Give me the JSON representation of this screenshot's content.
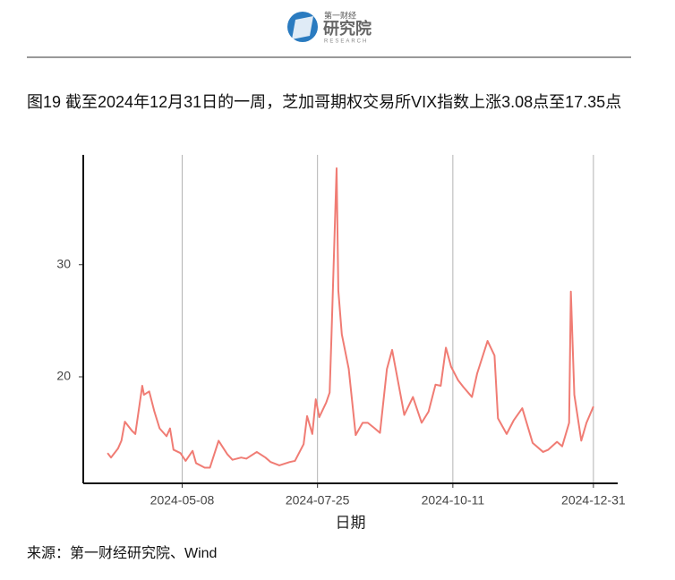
{
  "header": {
    "logo_small": "第一财经",
    "logo_main": "研究院",
    "logo_sub": "RESEARCH"
  },
  "caption": "图19  截至2024年12月31日的一周，芝加哥期权交易所VIX指数上涨3.08点至17.35点",
  "chart_data": {
    "type": "line",
    "x_label": "日期",
    "x": [
      "2024-03-26",
      "2024-03-28",
      "2024-04-01",
      "2024-04-03",
      "2024-04-05",
      "2024-04-09",
      "2024-04-11",
      "2024-04-15",
      "2024-04-16",
      "2024-04-19",
      "2024-04-22",
      "2024-04-25",
      "2024-04-29",
      "2024-05-01",
      "2024-05-03",
      "2024-05-07",
      "2024-05-10",
      "2024-05-14",
      "2024-05-16",
      "2024-05-21",
      "2024-05-24",
      "2024-05-29",
      "2024-06-03",
      "2024-06-06",
      "2024-06-11",
      "2024-06-14",
      "2024-06-20",
      "2024-06-25",
      "2024-06-28",
      "2024-07-03",
      "2024-07-09",
      "2024-07-12",
      "2024-07-17",
      "2024-07-19",
      "2024-07-22",
      "2024-07-24",
      "2024-07-26",
      "2024-07-30",
      "2024-08-01",
      "2024-08-02",
      "2024-08-05",
      "2024-08-06",
      "2024-08-08",
      "2024-08-12",
      "2024-08-16",
      "2024-08-20",
      "2024-08-23",
      "2024-08-27",
      "2024-08-30",
      "2024-09-03",
      "2024-09-06",
      "2024-09-10",
      "2024-09-13",
      "2024-09-18",
      "2024-09-23",
      "2024-09-27",
      "2024-10-01",
      "2024-10-04",
      "2024-10-07",
      "2024-10-10",
      "2024-10-14",
      "2024-10-17",
      "2024-10-22",
      "2024-10-25",
      "2024-10-31",
      "2024-11-04",
      "2024-11-06",
      "2024-11-11",
      "2024-11-15",
      "2024-11-20",
      "2024-11-26",
      "2024-12-02",
      "2024-12-05",
      "2024-12-10",
      "2024-12-13",
      "2024-12-17",
      "2024-12-18",
      "2024-12-20",
      "2024-12-24",
      "2024-12-27",
      "2024-12-31"
    ],
    "series": [
      {
        "color": "#f07c74",
        "values": [
          13.2,
          12.8,
          13.6,
          14.3,
          16.0,
          15.2,
          14.9,
          19.2,
          18.4,
          18.7,
          16.9,
          15.4,
          14.7,
          15.4,
          13.5,
          13.2,
          12.5,
          13.4,
          12.3,
          11.9,
          11.9,
          14.3,
          13.1,
          12.6,
          12.8,
          12.7,
          13.3,
          12.8,
          12.4,
          12.1,
          12.4,
          12.5,
          14.0,
          16.5,
          14.9,
          18.0,
          16.4,
          17.7,
          18.6,
          23.4,
          38.6,
          27.7,
          23.8,
          20.7,
          14.8,
          15.9,
          15.9,
          15.4,
          15.0,
          20.7,
          22.4,
          19.1,
          16.6,
          18.2,
          15.9,
          16.9,
          19.3,
          19.2,
          22.6,
          20.9,
          19.7,
          19.1,
          18.2,
          20.3,
          23.2,
          21.9,
          16.3,
          14.9,
          16.1,
          17.2,
          14.1,
          13.3,
          13.5,
          14.2,
          13.8,
          15.9,
          27.6,
          18.4,
          14.3,
          15.9,
          17.35
        ]
      }
    ],
    "xlim": [
      "2024-03-12",
      "2025-01-14"
    ],
    "xticks": [
      "2024-05-08",
      "2024-07-25",
      "2024-10-11",
      "2024-12-31"
    ],
    "ylim": [
      10.5,
      39.8
    ],
    "yticks": [
      20,
      30
    ],
    "grid_x": true
  },
  "source": "来源：第一财经研究院、Wind"
}
